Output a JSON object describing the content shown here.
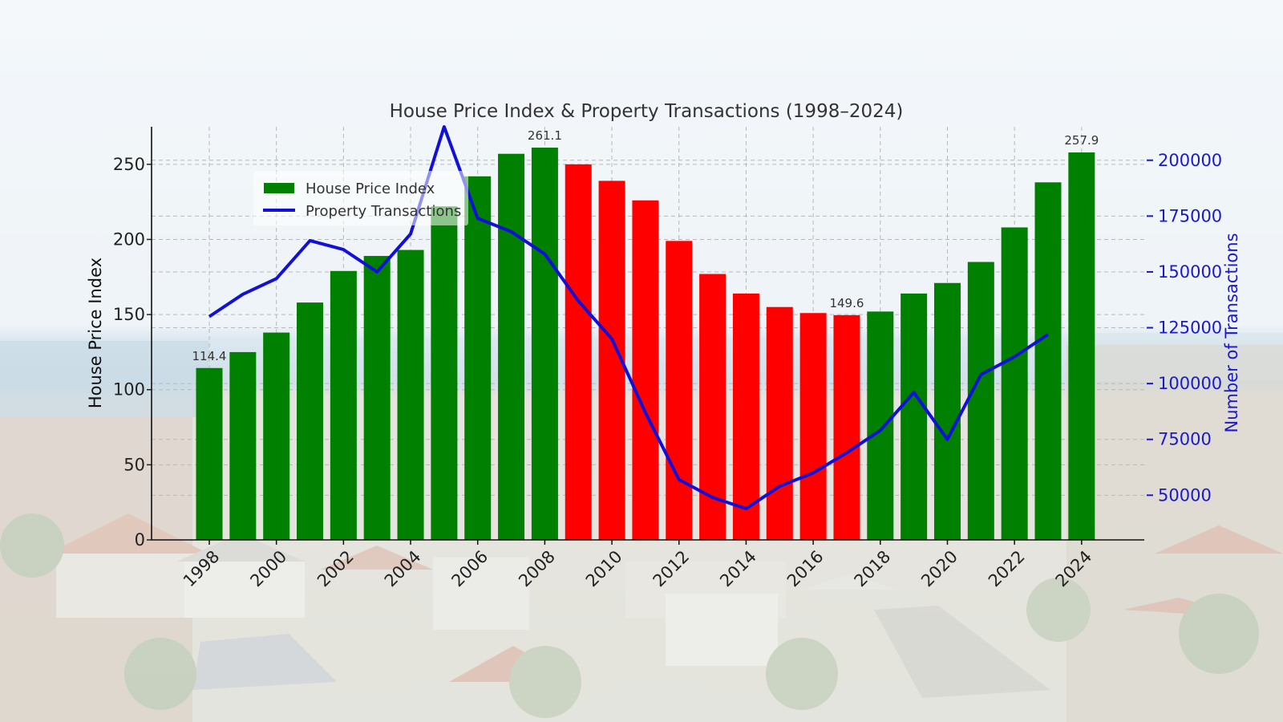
{
  "colors": {
    "up": "#008000",
    "down": "#ff0000",
    "line": "#1010d8",
    "right_axis": "#1a1acc",
    "grid": "#b8b8b8"
  },
  "background": {
    "description_icon": "suburban-rooftops-photo"
  },
  "chart_data": {
    "type": "bar",
    "title": "House Price Index & Property Transactions (1998–2024)",
    "xlabel": "",
    "ylabel": "House Price Index",
    "ylabel_right": "Number of Transactions",
    "ylim": [
      0,
      275
    ],
    "ylim_right": [
      30000,
      215000
    ],
    "yticks": [
      0,
      50,
      100,
      150,
      200,
      250
    ],
    "yticks_right": [
      50000,
      75000,
      100000,
      125000,
      150000,
      175000,
      200000
    ],
    "xticks": [
      "1998",
      "2000",
      "2002",
      "2004",
      "2006",
      "2008",
      "2010",
      "2012",
      "2014",
      "2016",
      "2018",
      "2020",
      "2022",
      "2024"
    ],
    "grid": true,
    "legend_position": "top-left",
    "legend": [
      {
        "label": "House Price Index",
        "kind": "bar"
      },
      {
        "label": "Property Transactions",
        "kind": "line"
      }
    ],
    "years": [
      1998,
      1999,
      2000,
      2001,
      2002,
      2003,
      2004,
      2005,
      2006,
      2007,
      2008,
      2009,
      2010,
      2011,
      2012,
      2013,
      2014,
      2015,
      2016,
      2017,
      2018,
      2019,
      2020,
      2021,
      2022,
      2023,
      2024
    ],
    "series": [
      {
        "name": "House Price Index",
        "axis": "left",
        "values": [
          114.4,
          125,
          138,
          158,
          179,
          189,
          193,
          222,
          242,
          257,
          261.1,
          250,
          239,
          226,
          199,
          177,
          164,
          155,
          151,
          149.6,
          152,
          164,
          171,
          185,
          208,
          238,
          257.9
        ],
        "colors": [
          "up",
          "up",
          "up",
          "up",
          "up",
          "up",
          "up",
          "up",
          "up",
          "up",
          "up",
          "down",
          "down",
          "down",
          "down",
          "down",
          "down",
          "down",
          "down",
          "down",
          "up",
          "up",
          "up",
          "up",
          "up",
          "up",
          "up"
        ]
      },
      {
        "name": "Property Transactions",
        "axis": "right",
        "values": [
          130000,
          140000,
          147000,
          164000,
          160000,
          150000,
          167000,
          215000,
          174000,
          168000,
          158000,
          137000,
          120000,
          87000,
          57000,
          49000,
          44000,
          54000,
          60000,
          69000,
          79000,
          96000,
          75000,
          104000,
          112000,
          122000,
          null
        ]
      }
    ],
    "annotations": [
      {
        "year": 1998,
        "text": "114.4"
      },
      {
        "year": 2008,
        "text": "261.1"
      },
      {
        "year": 2017,
        "text": "149.6"
      },
      {
        "year": 2024,
        "text": "257.9"
      }
    ]
  }
}
